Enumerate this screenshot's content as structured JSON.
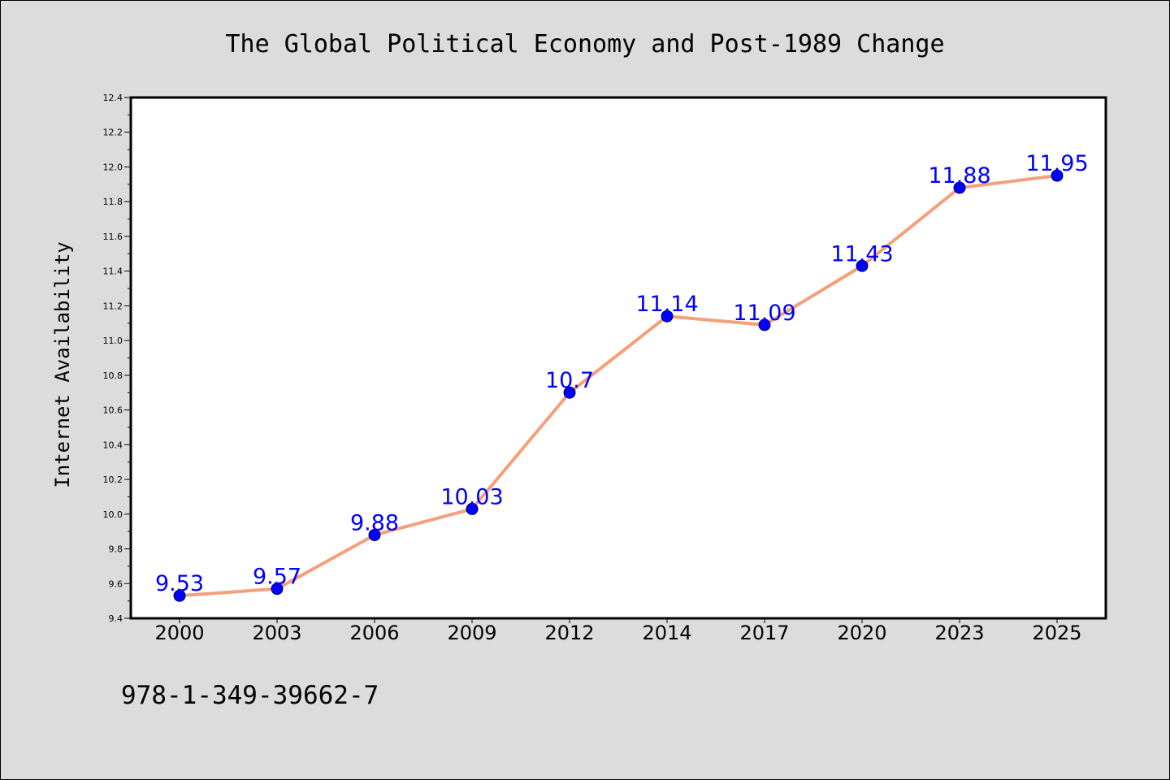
{
  "chart_data": {
    "type": "line",
    "title": "The Global Political Economy and Post-1989 Change",
    "xlabel": "",
    "ylabel": "Internet Availability",
    "categories": [
      "2000",
      "2003",
      "2006",
      "2009",
      "2012",
      "2014",
      "2017",
      "2020",
      "2023",
      "2025"
    ],
    "series": [
      {
        "values": [
          9.53,
          9.57,
          9.88,
          10.03,
          10.7,
          11.14,
          11.09,
          11.43,
          11.88,
          11.95
        ],
        "data_labels": [
          "9.53",
          "9.57",
          "9.88",
          "10.03",
          "10.7",
          "11.14",
          "11.09",
          "11.43",
          "11.88",
          "11.95"
        ]
      }
    ],
    "ylim": [
      9.4,
      12.4
    ],
    "yticks": [
      "9.4",
      "9.6",
      "9.8",
      "10.0",
      "10.2",
      "10.4",
      "10.6",
      "10.8",
      "11.0",
      "11.2",
      "11.4",
      "11.6",
      "11.8",
      "12.0",
      "12.2",
      "12.4"
    ],
    "grid": false,
    "legend": "none",
    "colors": {
      "line": "#f4a07a",
      "marker_fill": "#0000ff",
      "marker_edge": "#000066",
      "data_label": "#0000ff",
      "plot_background": "#ffffff",
      "figure_background": "#dcdcdc"
    }
  },
  "footer": {
    "isbn": "978-1-349-39662-7"
  }
}
